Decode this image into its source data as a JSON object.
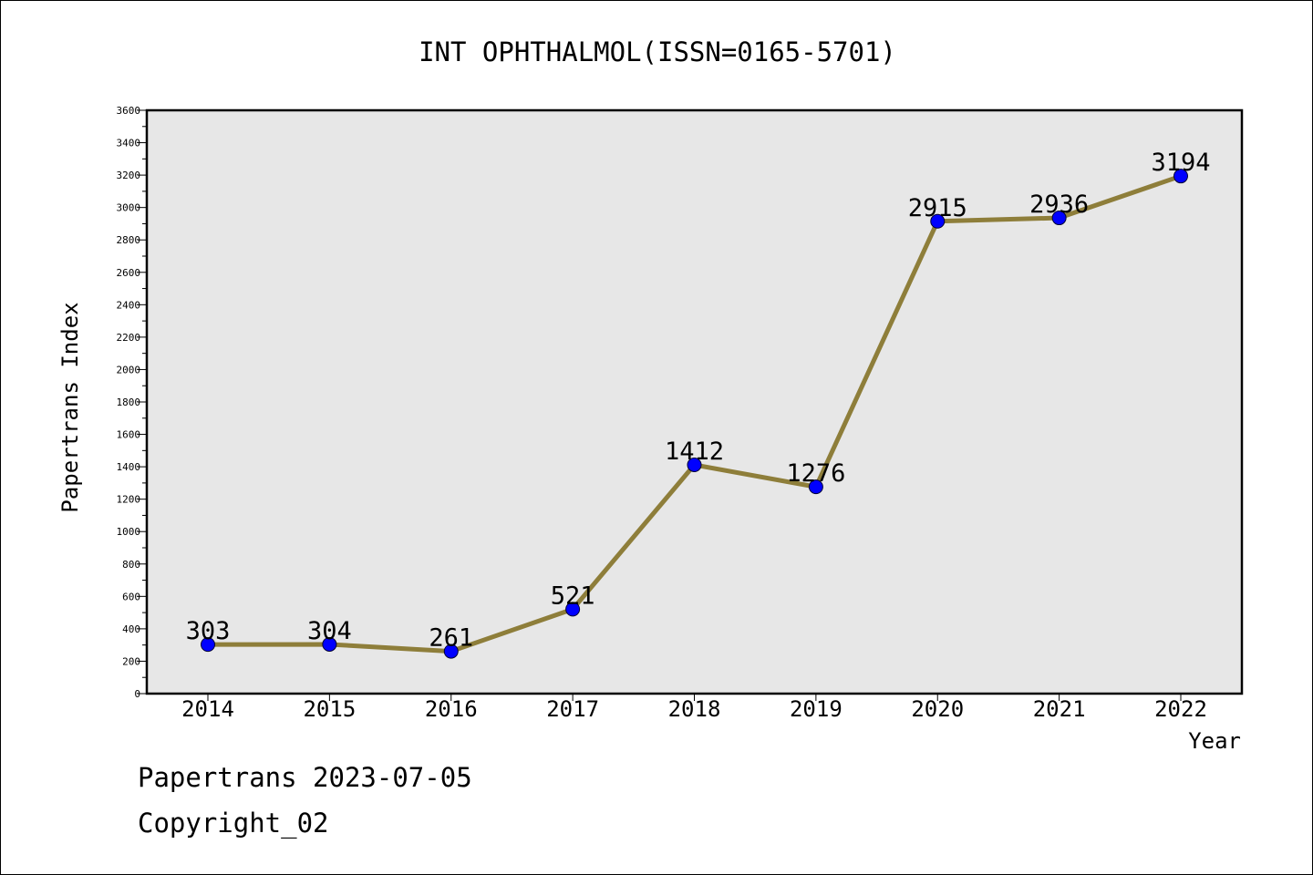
{
  "chart_data": {
    "type": "line",
    "title": "INT OPHTHALMOL(ISSN=0165-5701)",
    "xlabel": "Year",
    "ylabel": "Papertrans Index",
    "categories": [
      "2014",
      "2015",
      "2016",
      "2017",
      "2018",
      "2019",
      "2020",
      "2021",
      "2022"
    ],
    "series": [
      {
        "values": [
          303,
          304,
          261,
          521,
          1412,
          1276,
          2915,
          2936,
          3194
        ]
      }
    ],
    "data_labels": [
      "303",
      "304",
      "261",
      "521",
      "1412",
      "1276",
      "2915",
      "2936",
      "3194"
    ],
    "ylim": [
      0,
      3600
    ],
    "yticks": [
      0,
      200,
      400,
      600,
      800,
      1000,
      1200,
      1400,
      1600,
      1800,
      2000,
      2200,
      2400,
      2600,
      2800,
      3000,
      3200,
      3400,
      3600
    ],
    "grid": false,
    "legend": "none",
    "colors": {
      "line": "#8E7E3A",
      "marker": "#0000FF",
      "plot_background": "#E7E7E7",
      "frame": "#000000"
    }
  },
  "footer": {
    "line1": "Papertrans 2023-07-05",
    "line2": "Copyright_02"
  }
}
